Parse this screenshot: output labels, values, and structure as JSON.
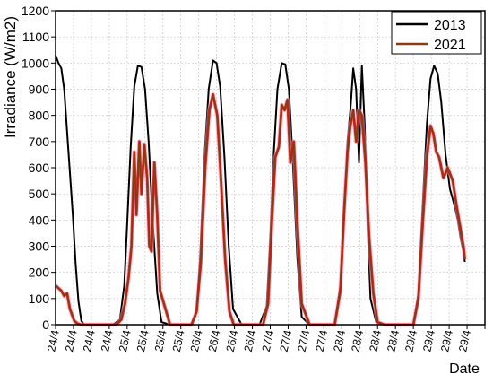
{
  "chart_data": {
    "type": "line",
    "xlabel": "Date",
    "ylabel": "Irradiance (W/m2)",
    "ylim": [
      0,
      1200
    ],
    "yticks": [
      0,
      100,
      200,
      300,
      400,
      500,
      600,
      700,
      800,
      900,
      1000,
      1100,
      1200
    ],
    "xlim": [
      0,
      6
    ],
    "xtick_labels": [
      "24/4",
      "24/4",
      "24/4",
      "24/4",
      "25/4",
      "25/4",
      "25/4",
      "25/4",
      "26/4",
      "26/4",
      "26/4",
      "26/4",
      "27/4",
      "27/4",
      "27/4",
      "27/4",
      "28/4",
      "28/4",
      "28/4",
      "28/4",
      "29/4",
      "29/4",
      "29/4",
      "29/4"
    ],
    "xtick_positions": [
      0.0,
      0.25,
      0.5,
      0.75,
      1.0,
      1.25,
      1.5,
      1.75,
      2.0,
      2.25,
      2.5,
      2.75,
      3.0,
      3.25,
      3.5,
      3.75,
      4.0,
      4.25,
      4.5,
      4.75,
      5.0,
      5.25,
      5.5,
      5.75
    ],
    "grid": true,
    "legend_position": "top-right",
    "series": [
      {
        "name": "2013",
        "color": "#000000",
        "x": [
          0.0,
          0.04,
          0.08,
          0.12,
          0.16,
          0.2,
          0.24,
          0.28,
          0.32,
          0.36,
          0.4,
          0.5,
          0.8,
          0.9,
          0.96,
          1.0,
          1.05,
          1.1,
          1.15,
          1.2,
          1.25,
          1.3,
          1.36,
          1.42,
          1.48,
          1.6,
          1.9,
          1.97,
          2.02,
          2.08,
          2.14,
          2.2,
          2.25,
          2.3,
          2.36,
          2.42,
          2.48,
          2.6,
          2.85,
          2.95,
          3.0,
          3.05,
          3.1,
          3.16,
          3.21,
          3.26,
          3.32,
          3.38,
          3.44,
          3.55,
          3.9,
          3.98,
          4.04,
          4.08,
          4.12,
          4.16,
          4.2,
          4.24,
          4.28,
          4.32,
          4.36,
          4.4,
          4.48,
          4.6,
          5.0,
          5.07,
          5.13,
          5.19,
          5.24,
          5.29,
          5.34,
          5.39,
          5.45,
          5.51,
          5.58,
          5.62,
          5.66,
          5.7,
          5.72
        ],
        "y": [
          1030,
          1000,
          980,
          900,
          740,
          580,
          420,
          230,
          90,
          15,
          0,
          0,
          0,
          20,
          150,
          380,
          680,
          910,
          990,
          985,
          900,
          700,
          380,
          120,
          10,
          0,
          0,
          50,
          260,
          640,
          900,
          1010,
          1000,
          910,
          640,
          300,
          60,
          0,
          0,
          70,
          330,
          660,
          900,
          1000,
          995,
          900,
          600,
          250,
          30,
          0,
          0,
          150,
          450,
          700,
          820,
          980,
          900,
          620,
          990,
          760,
          380,
          100,
          10,
          0,
          0,
          120,
          450,
          770,
          940,
          990,
          960,
          850,
          650,
          520,
          450,
          400,
          330,
          280,
          240
        ]
      },
      {
        "name": "2021",
        "color": "#8B3A0F",
        "x": [
          0.0,
          0.04,
          0.08,
          0.12,
          0.16,
          0.2,
          0.26,
          0.3,
          0.36,
          0.5,
          0.85,
          0.92,
          0.97,
          1.02,
          1.06,
          1.1,
          1.13,
          1.17,
          1.2,
          1.24,
          1.28,
          1.31,
          1.34,
          1.38,
          1.42,
          1.46,
          1.6,
          1.9,
          1.97,
          2.03,
          2.09,
          2.15,
          2.2,
          2.26,
          2.31,
          2.37,
          2.43,
          2.49,
          2.6,
          2.9,
          2.97,
          3.02,
          3.07,
          3.12,
          3.16,
          3.2,
          3.24,
          3.28,
          3.33,
          3.38,
          3.44,
          3.55,
          3.9,
          3.98,
          4.03,
          4.08,
          4.12,
          4.16,
          4.2,
          4.24,
          4.28,
          4.33,
          4.38,
          4.44,
          4.5,
          4.6,
          5.0,
          5.07,
          5.13,
          5.19,
          5.24,
          5.28,
          5.32,
          5.36,
          5.42,
          5.48,
          5.55,
          5.6,
          5.65,
          5.7,
          5.72
        ],
        "y": [
          150,
          140,
          130,
          110,
          120,
          60,
          15,
          5,
          0,
          0,
          0,
          20,
          80,
          180,
          300,
          660,
          420,
          700,
          500,
          690,
          560,
          300,
          280,
          620,
          420,
          130,
          0,
          0,
          50,
          240,
          600,
          820,
          880,
          800,
          560,
          250,
          50,
          0,
          0,
          0,
          80,
          380,
          640,
          680,
          840,
          820,
          860,
          620,
          700,
          390,
          80,
          0,
          0,
          130,
          420,
          660,
          760,
          820,
          700,
          820,
          800,
          620,
          340,
          120,
          10,
          0,
          0,
          100,
          380,
          640,
          760,
          730,
          660,
          640,
          560,
          600,
          550,
          460,
          380,
          300,
          250
        ]
      }
    ]
  }
}
